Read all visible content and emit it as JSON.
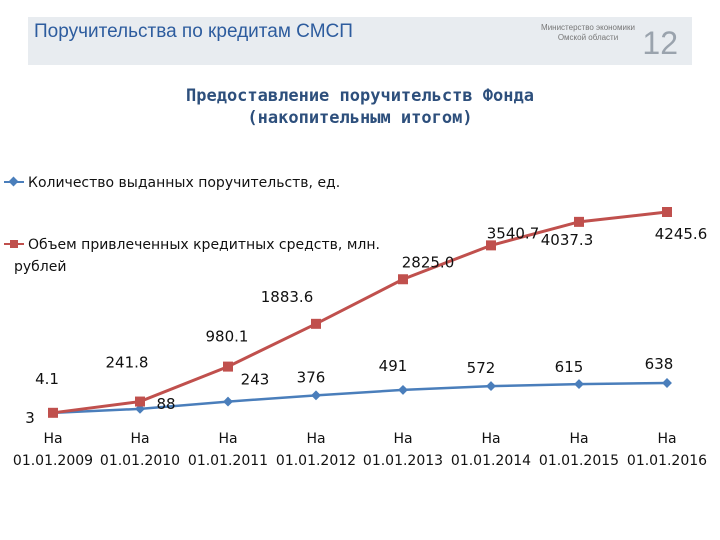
{
  "header": {
    "title": "Поручительства по кредитам СМСП",
    "ministry_line1": "Министерство экономики",
    "ministry_line2": "Омской области",
    "page_number": "12"
  },
  "chart_data": {
    "type": "line",
    "title_line1": "Предоставление поручительств Фонда",
    "title_line2": "(накопительным итогом)",
    "categories": [
      [
        "На",
        "01.01.2009"
      ],
      [
        "На",
        "01.01.2010"
      ],
      [
        "На",
        "01.01.2011"
      ],
      [
        "На",
        "01.01.2012"
      ],
      [
        "На",
        "01.01.2013"
      ],
      [
        "На",
        "01.01.2014"
      ],
      [
        "На",
        "01.01.2015"
      ],
      [
        "На",
        "01.01.2016"
      ]
    ],
    "series": [
      {
        "name": "Количество выданных поручительств, ед.",
        "values": [
          3,
          88,
          243,
          376,
          491,
          572,
          615,
          638
        ],
        "labels": [
          "3",
          "88",
          "243",
          "376",
          "491",
          "572",
          "615",
          "638"
        ],
        "color": "#4a7ebb",
        "marker": "diamond"
      },
      {
        "name_line1": "Объем привлеченных кредитных средств, млн.",
        "name_line2": "рублей",
        "values": [
          4.1,
          241.8,
          980.1,
          1883.6,
          2825.0,
          3540.7,
          4037.3,
          4245.6
        ],
        "labels": [
          "4.1",
          "241.8",
          "980.1",
          "1883.6",
          "2825.0",
          "3540.7",
          "4037.3",
          "4245.6"
        ],
        "color": "#c0504d",
        "marker": "square"
      }
    ],
    "legend_position": "top-left",
    "grid": false
  }
}
